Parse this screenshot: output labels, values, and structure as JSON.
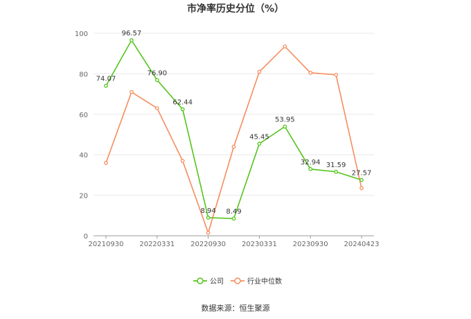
{
  "chart_data": {
    "type": "line",
    "title": "市净率历史分位（%）",
    "x_ticks": [
      "20210930",
      "20220331",
      "20220930",
      "20230331",
      "20230930",
      "20240423"
    ],
    "ylim": [
      0,
      100
    ],
    "y_ticks": [
      "0",
      "20",
      "40",
      "60",
      "80",
      "100"
    ],
    "grid": true,
    "legend_position": "bottom",
    "series": [
      {
        "name": "公司",
        "color": "#52c41a",
        "values": [
          74.07,
          96.57,
          76.9,
          62.44,
          8.94,
          8.49,
          45.45,
          53.95,
          32.94,
          31.59,
          27.57
        ],
        "labels": [
          "74.07",
          "96.57",
          "76.90",
          "62.44",
          "8.94",
          "8.49",
          "45.45",
          "53.95",
          "32.94",
          "31.59",
          "27.57"
        ]
      },
      {
        "name": "行业中位数",
        "color": "#f58d5d",
        "values": [
          36,
          71,
          63,
          37,
          1.5,
          44,
          81,
          93.5,
          80.5,
          79.5,
          23.5
        ]
      }
    ]
  },
  "source_text": "数据来源：恒生聚源"
}
